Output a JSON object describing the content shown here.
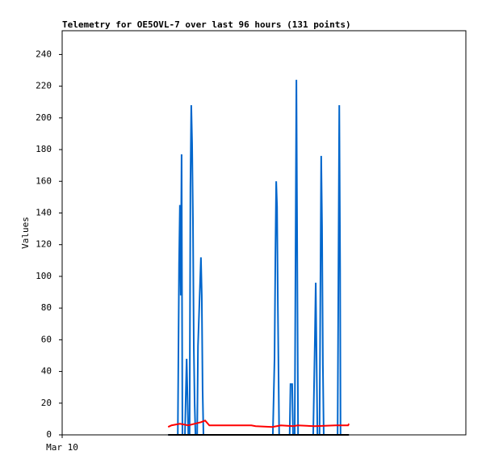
{
  "chart_data": {
    "type": "line",
    "title": "Telemetry for OE5OVL-7 over last 96 hours (131 points)",
    "y_label": "Values",
    "xlim": [
      0,
      96
    ],
    "xticks": [
      {
        "value": 0,
        "label": "Mar 10"
      }
    ],
    "ylim": [
      0,
      255
    ],
    "yticks": [
      0,
      20,
      40,
      60,
      80,
      100,
      120,
      140,
      160,
      180,
      200,
      220,
      240
    ],
    "series": [
      {
        "color": "#0066cc",
        "x": [
          25.2,
          27.5,
          27.6,
          27.8,
          28.0,
          28.2,
          28.4,
          28.6,
          29.2,
          29.4,
          29.6,
          29.8,
          30.0,
          30.3,
          30.5,
          30.7,
          30.9,
          31.1,
          31.3,
          31.5,
          31.7,
          32.1,
          32.3,
          32.6,
          33.0,
          33.2,
          33.4,
          33.6,
          50.1,
          50.5,
          50.7,
          50.9,
          51.1,
          51.3,
          51.6,
          54.1,
          54.3,
          54.7,
          54.9,
          55.3,
          55.5,
          55.7,
          55.9,
          56.1,
          59.7,
          60.1,
          60.3,
          60.5,
          60.7,
          61.2,
          61.4,
          61.6,
          61.8,
          62.0,
          62.2,
          65.5,
          65.7,
          65.9,
          66.1,
          66.2,
          68.2
        ],
        "values": [
          0,
          0,
          36,
          108,
          145,
          88,
          177,
          0,
          0,
          25,
          48,
          25,
          0,
          0,
          156,
          208,
          184,
          136,
          56,
          20,
          0,
          0,
          56,
          80,
          112,
          88,
          28,
          0,
          0,
          48,
          112,
          160,
          144,
          80,
          0,
          0,
          32,
          32,
          0,
          0,
          112,
          224,
          112,
          0,
          0,
          60,
          96,
          48,
          0,
          0,
          88,
          176,
          132,
          44,
          0,
          0,
          104,
          208,
          104,
          0,
          0
        ]
      },
      {
        "color": "#ff0000",
        "x": [
          25.2,
          26.0,
          28.0,
          30.0,
          33.0,
          34.0,
          35.0,
          45.0,
          46.0,
          50.0,
          52.0,
          55.0,
          56.0,
          60.0,
          65.0,
          68.0,
          68.2
        ],
        "values": [
          5,
          6,
          7,
          6,
          8,
          9,
          6,
          6,
          5.5,
          5,
          6,
          5.5,
          6,
          5.5,
          6,
          6,
          7
        ]
      },
      {
        "color": "#000000",
        "x": [
          25.2,
          68.2
        ],
        "values": [
          0,
          0
        ]
      }
    ]
  }
}
